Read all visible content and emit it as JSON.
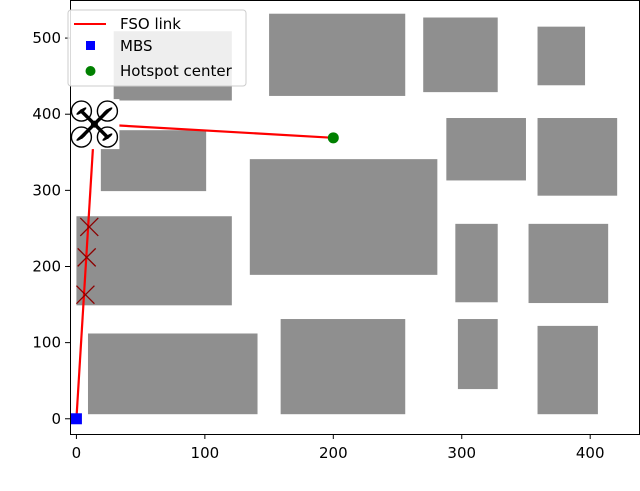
{
  "chart_data": {
    "type": "scatter",
    "title": "",
    "xlabel": "",
    "ylabel": "",
    "xlim": [
      -5,
      438
    ],
    "ylim": [
      -20,
      550
    ],
    "xticks": [
      0,
      100,
      200,
      300,
      400
    ],
    "yticks": [
      0,
      100,
      200,
      300,
      400,
      500
    ],
    "xtick_labels": [
      "0",
      "100",
      "200",
      "300",
      "400"
    ],
    "ytick_labels": [
      "0",
      "100",
      "200",
      "300",
      "400",
      "500"
    ],
    "grid": false,
    "legend": {
      "position": "top-left",
      "entries": [
        {
          "label": "FSO link",
          "marker": "line",
          "color": "#ff0000"
        },
        {
          "label": "MBS",
          "marker": "square",
          "color": "#0000ff"
        },
        {
          "label": "Hotspot center",
          "marker": "circle",
          "color": "#008000"
        }
      ]
    },
    "buildings": [
      {
        "x0": 29,
        "x1": 121,
        "y0": 418,
        "y1": 509
      },
      {
        "x0": 150,
        "x1": 256,
        "y0": 424,
        "y1": 532
      },
      {
        "x0": 270,
        "x1": 328,
        "y0": 429,
        "y1": 527
      },
      {
        "x0": 359,
        "x1": 396,
        "y0": 438,
        "y1": 515
      },
      {
        "x0": 19,
        "x1": 101,
        "y0": 299,
        "y1": 379
      },
      {
        "x0": 288,
        "x1": 350,
        "y0": 313,
        "y1": 395
      },
      {
        "x0": 359,
        "x1": 421,
        "y0": 293,
        "y1": 395
      },
      {
        "x0": 135,
        "x1": 281,
        "y0": 189,
        "y1": 341
      },
      {
        "x0": 0,
        "x1": 121,
        "y0": 149,
        "y1": 266
      },
      {
        "x0": 295,
        "x1": 328,
        "y0": 153,
        "y1": 256
      },
      {
        "x0": 352,
        "x1": 414,
        "y0": 152,
        "y1": 256
      },
      {
        "x0": 9,
        "x1": 141,
        "y0": 6,
        "y1": 112
      },
      {
        "x0": 159,
        "x1": 256,
        "y0": 6,
        "y1": 131
      },
      {
        "x0": 297,
        "x1": 328,
        "y0": 39,
        "y1": 131
      },
      {
        "x0": 359,
        "x1": 406,
        "y0": 6,
        "y1": 122
      }
    ],
    "mbs": {
      "x": 0,
      "y": 0
    },
    "uav": {
      "x": 14,
      "y": 387
    },
    "hotspot": {
      "x": 200,
      "y": 369
    },
    "fso_links": [
      [
        {
          "x": 0,
          "y": 0
        },
        {
          "x": 14,
          "y": 387
        }
      ],
      [
        {
          "x": 14,
          "y": 387
        },
        {
          "x": 200,
          "y": 369
        }
      ]
    ],
    "blockage_markers": [
      {
        "x": 10,
        "y": 252
      },
      {
        "x": 8,
        "y": 212
      },
      {
        "x": 7,
        "y": 163
      }
    ],
    "colors": {
      "building": "#8f8f8f",
      "fso": "#ff0000",
      "mbs": "#0000ff",
      "hotspot": "#008000",
      "blockage": "#8b0000"
    }
  }
}
